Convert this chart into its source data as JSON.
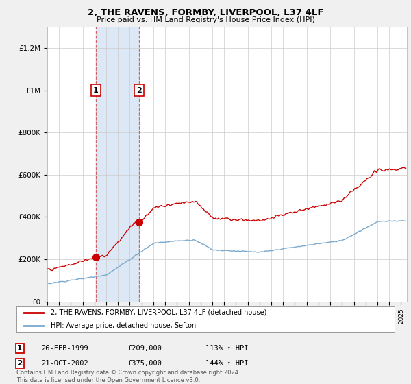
{
  "title": "2, THE RAVENS, FORMBY, LIVERPOOL, L37 4LF",
  "subtitle": "Price paid vs. HM Land Registry's House Price Index (HPI)",
  "legend_line1": "2, THE RAVENS, FORMBY, LIVERPOOL, L37 4LF (detached house)",
  "legend_line2": "HPI: Average price, detached house, Sefton",
  "sale1_date": "26-FEB-1999",
  "sale1_price": 209000,
  "sale1_hpi_pct": "113% ↑ HPI",
  "sale2_date": "21-OCT-2002",
  "sale2_price": 375000,
  "sale2_hpi_pct": "144% ↑ HPI",
  "footer": "Contains HM Land Registry data © Crown copyright and database right 2024.\nThis data is licensed under the Open Government Licence v3.0.",
  "ylim": [
    0,
    1300000
  ],
  "yticks": [
    0,
    200000,
    400000,
    600000,
    800000,
    1000000,
    1200000
  ],
  "ytick_labels": [
    "£0",
    "£200K",
    "£400K",
    "£600K",
    "£800K",
    "£1M",
    "£1.2M"
  ],
  "bg_color": "#f0f0f0",
  "plot_bg_color": "#ffffff",
  "red_color": "#cc0000",
  "blue_color": "#7aa8cc",
  "shade_color": "#dce8f5",
  "sale1_year": 1999.12,
  "sale2_year": 2002.79,
  "xmin": 1995,
  "xmax": 2025.5
}
